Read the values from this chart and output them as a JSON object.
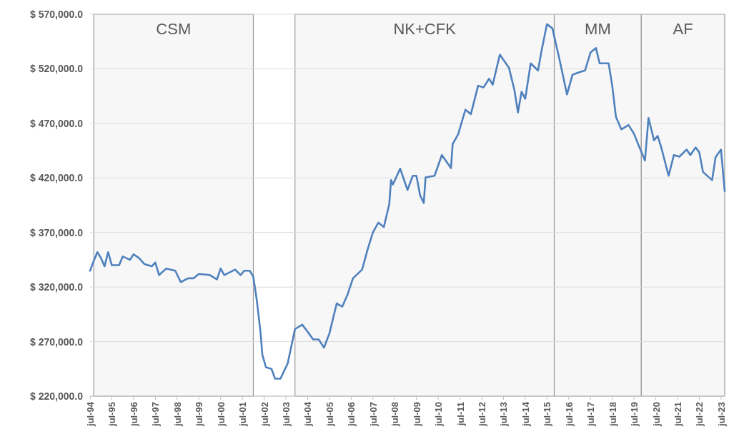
{
  "chart_data": {
    "type": "line",
    "grid": "y",
    "marker": "none",
    "line_style": "solid",
    "ylim": [
      220000,
      570000
    ],
    "yticks": [
      {
        "value": 220000,
        "label": "$ 220,000.0"
      },
      {
        "value": 270000,
        "label": "$ 270,000.0"
      },
      {
        "value": 320000,
        "label": "$ 320,000.0"
      },
      {
        "value": 370000,
        "label": "$ 370,000.0"
      },
      {
        "value": 420000,
        "label": "$ 420,000.0"
      },
      {
        "value": 470000,
        "label": "$ 470,000.0"
      },
      {
        "value": 520000,
        "label": "$ 520,000.0"
      },
      {
        "value": 570000,
        "label": "$ 570,000.0"
      }
    ],
    "xlim": [
      "1994-07",
      "2023-09"
    ],
    "xticks": [
      {
        "value": "1994-07",
        "label": "jul-94"
      },
      {
        "value": "1995-07",
        "label": "jul-95"
      },
      {
        "value": "1996-07",
        "label": "jul-96"
      },
      {
        "value": "1997-07",
        "label": "jul-97"
      },
      {
        "value": "1998-07",
        "label": "jul-98"
      },
      {
        "value": "1999-07",
        "label": "jul-99"
      },
      {
        "value": "2000-07",
        "label": "jul-00"
      },
      {
        "value": "2001-07",
        "label": "jul-01"
      },
      {
        "value": "2002-07",
        "label": "jul-02"
      },
      {
        "value": "2003-07",
        "label": "jul-03"
      },
      {
        "value": "2004-07",
        "label": "jul-04"
      },
      {
        "value": "2005-07",
        "label": "jul-05"
      },
      {
        "value": "2006-07",
        "label": "jul-06"
      },
      {
        "value": "2007-07",
        "label": "jul-07"
      },
      {
        "value": "2008-07",
        "label": "jul-08"
      },
      {
        "value": "2009-07",
        "label": "jul-09"
      },
      {
        "value": "2010-07",
        "label": "jul-10"
      },
      {
        "value": "2011-07",
        "label": "jul-11"
      },
      {
        "value": "2012-07",
        "label": "jul-12"
      },
      {
        "value": "2013-07",
        "label": "jul-13"
      },
      {
        "value": "2014-07",
        "label": "jul-14"
      },
      {
        "value": "2015-07",
        "label": "jul-15"
      },
      {
        "value": "2016-07",
        "label": "jul-16"
      },
      {
        "value": "2017-07",
        "label": "jul-17"
      },
      {
        "value": "2018-07",
        "label": "jul-18"
      },
      {
        "value": "2019-07",
        "label": "jul-19"
      },
      {
        "value": "2020-07",
        "label": "jul-20"
      },
      {
        "value": "2021-07",
        "label": "jul-21"
      },
      {
        "value": "2022-07",
        "label": "jul-22"
      },
      {
        "value": "2023-07",
        "label": "jul-23"
      }
    ],
    "bands": [
      {
        "axis": "x",
        "from": "1994-09",
        "to": "2002-01",
        "label": "CSM",
        "color": "#f7f7f7"
      },
      {
        "axis": "x",
        "from": "2003-12",
        "to": "2015-11",
        "label": "NK+CFK",
        "color": "#f7f7f7"
      },
      {
        "axis": "x",
        "from": "2015-11",
        "to": "2019-11",
        "label": "MM",
        "color": "#f7f7f7"
      },
      {
        "axis": "x",
        "from": "2019-11",
        "to": "2023-09",
        "label": "AF",
        "color": "#f7f7f7"
      }
    ],
    "series": [
      {
        "color": "#4f81bd",
        "x": [
          "1994-07",
          "1994-09",
          "1994-11",
          "1995-01",
          "1995-03",
          "1995-05",
          "1995-07",
          "1995-11",
          "1996-01",
          "1996-05",
          "1996-07",
          "1996-10",
          "1997-01",
          "1997-05",
          "1997-07",
          "1997-09",
          "1998-01",
          "1998-06",
          "1998-09",
          "1999-01",
          "1999-04",
          "1999-07",
          "2000-01",
          "2000-05",
          "2000-07",
          "2000-09",
          "2001-03",
          "2001-06",
          "2001-08",
          "2001-11",
          "2002-01",
          "2002-03",
          "2002-05",
          "2002-06",
          "2002-08",
          "2002-11",
          "2003-01",
          "2003-04",
          "2003-08",
          "2003-12",
          "2004-04",
          "2004-07",
          "2004-10",
          "2005-01",
          "2005-04",
          "2005-07",
          "2005-11",
          "2006-02",
          "2006-05",
          "2006-08",
          "2007-01",
          "2007-04",
          "2007-07",
          "2007-10",
          "2008-01",
          "2008-04",
          "2008-05",
          "2008-06",
          "2008-10",
          "2009-02",
          "2009-05",
          "2009-07",
          "2009-09",
          "2009-11",
          "2009-12",
          "2010-05",
          "2010-09",
          "2011-02",
          "2011-03",
          "2011-06",
          "2011-10",
          "2012-01",
          "2012-05",
          "2012-08",
          "2012-11",
          "2013-01",
          "2013-05",
          "2013-10",
          "2014-01",
          "2014-03",
          "2014-05",
          "2014-07",
          "2014-10",
          "2015-02",
          "2015-04",
          "2015-07",
          "2015-10",
          "2016-02",
          "2016-06",
          "2016-09",
          "2017-01",
          "2017-04",
          "2017-07",
          "2017-10",
          "2017-12",
          "2018-05",
          "2018-07",
          "2018-09",
          "2018-12",
          "2019-04",
          "2019-07",
          "2019-10",
          "2020-01",
          "2020-03",
          "2020-06",
          "2020-08",
          "2020-10",
          "2021-02",
          "2021-05",
          "2021-08",
          "2021-12",
          "2022-02",
          "2022-05",
          "2022-07",
          "2022-09",
          "2023-02",
          "2023-04",
          "2023-07",
          "2023-09"
        ],
        "values": [
          335000,
          344000,
          352000,
          346500,
          339000,
          352000,
          340000,
          340000,
          348000,
          345000,
          350000,
          346500,
          341000,
          339000,
          342500,
          331000,
          337000,
          335000,
          324500,
          328000,
          328000,
          332000,
          331000,
          327000,
          337000,
          331000,
          336000,
          331000,
          335000,
          335000,
          329500,
          307500,
          279000,
          258000,
          246500,
          245000,
          236000,
          236000,
          250000,
          281500,
          285500,
          279000,
          272000,
          272000,
          264500,
          277500,
          305000,
          302000,
          313000,
          328000,
          336000,
          354000,
          370000,
          379000,
          375000,
          396000,
          418000,
          414000,
          428500,
          409000,
          422000,
          422000,
          404000,
          397000,
          420500,
          422000,
          441000,
          429000,
          451000,
          460000,
          482500,
          478500,
          504500,
          503000,
          511000,
          505500,
          533000,
          521000,
          500500,
          480000,
          499000,
          492500,
          525000,
          518500,
          536500,
          561000,
          557000,
          527500,
          496500,
          514500,
          517000,
          518500,
          535000,
          539000,
          525000,
          525000,
          504500,
          476000,
          464500,
          468500,
          460500,
          448000,
          436000,
          475000,
          454500,
          458500,
          448000,
          422000,
          441000,
          439500,
          446000,
          441000,
          448000,
          443500,
          425500,
          418000,
          439000,
          446000,
          408000
        ]
      }
    ]
  }
}
